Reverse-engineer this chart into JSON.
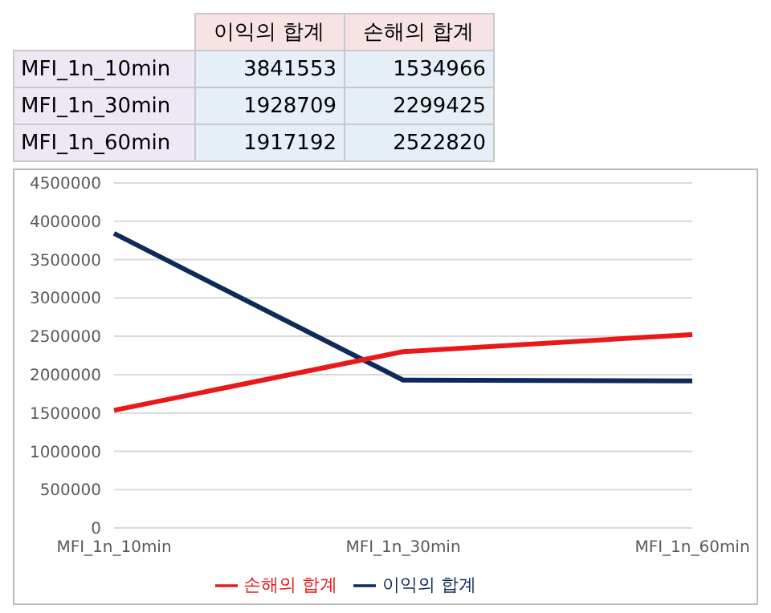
{
  "chart_data": [
    {
      "type": "other",
      "categories": [
        "MFI_1n_10min",
        "MFI_1n_30min",
        "MFI_1n_60min"
      ],
      "series": [
        {
          "name": "이익의 합계",
          "values": [
            3841553,
            1928709,
            1917192
          ]
        },
        {
          "name": "손해의 합계",
          "values": [
            1534966,
            2299425,
            2522820
          ]
        }
      ],
      "data_labels": true
    },
    {
      "type": "line",
      "categories": [
        "MFI_1n_10min",
        "MFI_1n_30min",
        "MFI_1n_60min"
      ],
      "series": [
        {
          "name": "이익의 합계",
          "color": "#0e2a5c",
          "values": [
            3841553,
            1928709,
            1917192
          ]
        },
        {
          "name": "손해의 합계",
          "color": "#e8191a",
          "values": [
            1534966,
            2299425,
            2522820
          ]
        }
      ],
      "ylim": [
        0,
        4500000
      ],
      "yticks": [
        0,
        500000,
        1000000,
        1500000,
        2000000,
        2500000,
        3000000,
        3500000,
        4000000,
        4500000
      ],
      "grid": "y",
      "legend": "bottom",
      "marker": "none",
      "line_style": "solid"
    }
  ]
}
